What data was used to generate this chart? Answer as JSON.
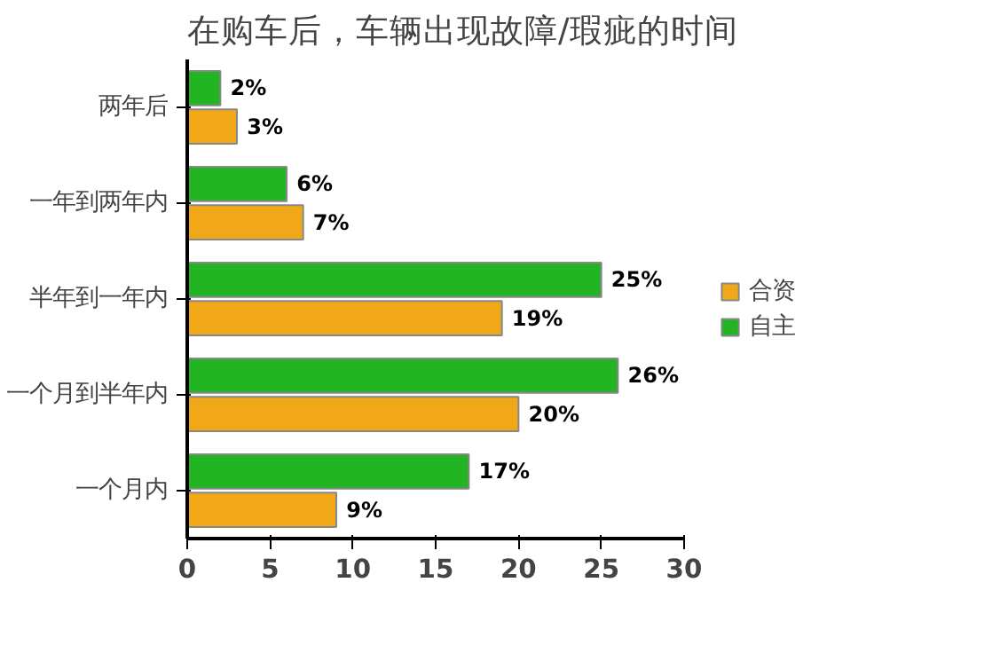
{
  "chart_data": {
    "type": "bar",
    "orientation": "horizontal",
    "title": "在购车后，车辆出现故障/瑕疵的时间",
    "categories": [
      "两年后",
      "一年到两年内",
      "半年到一年内",
      "一个月到半年内",
      "一个月内"
    ],
    "series": [
      {
        "name": "自主",
        "color": "#22b422",
        "values": [
          2,
          6,
          25,
          26,
          17
        ],
        "value_labels": [
          "2%",
          "6%",
          "25%",
          "26%",
          "17%"
        ]
      },
      {
        "name": "合资",
        "color": "#f0a818",
        "values": [
          3,
          7,
          19,
          20,
          9
        ],
        "value_labels": [
          "3%",
          "7%",
          "19%",
          "20%",
          "9%"
        ]
      }
    ],
    "xlim": [
      0,
      30
    ],
    "xticks": [
      0,
      5,
      10,
      15,
      20,
      25,
      30
    ],
    "grid": false,
    "legend": "right"
  }
}
